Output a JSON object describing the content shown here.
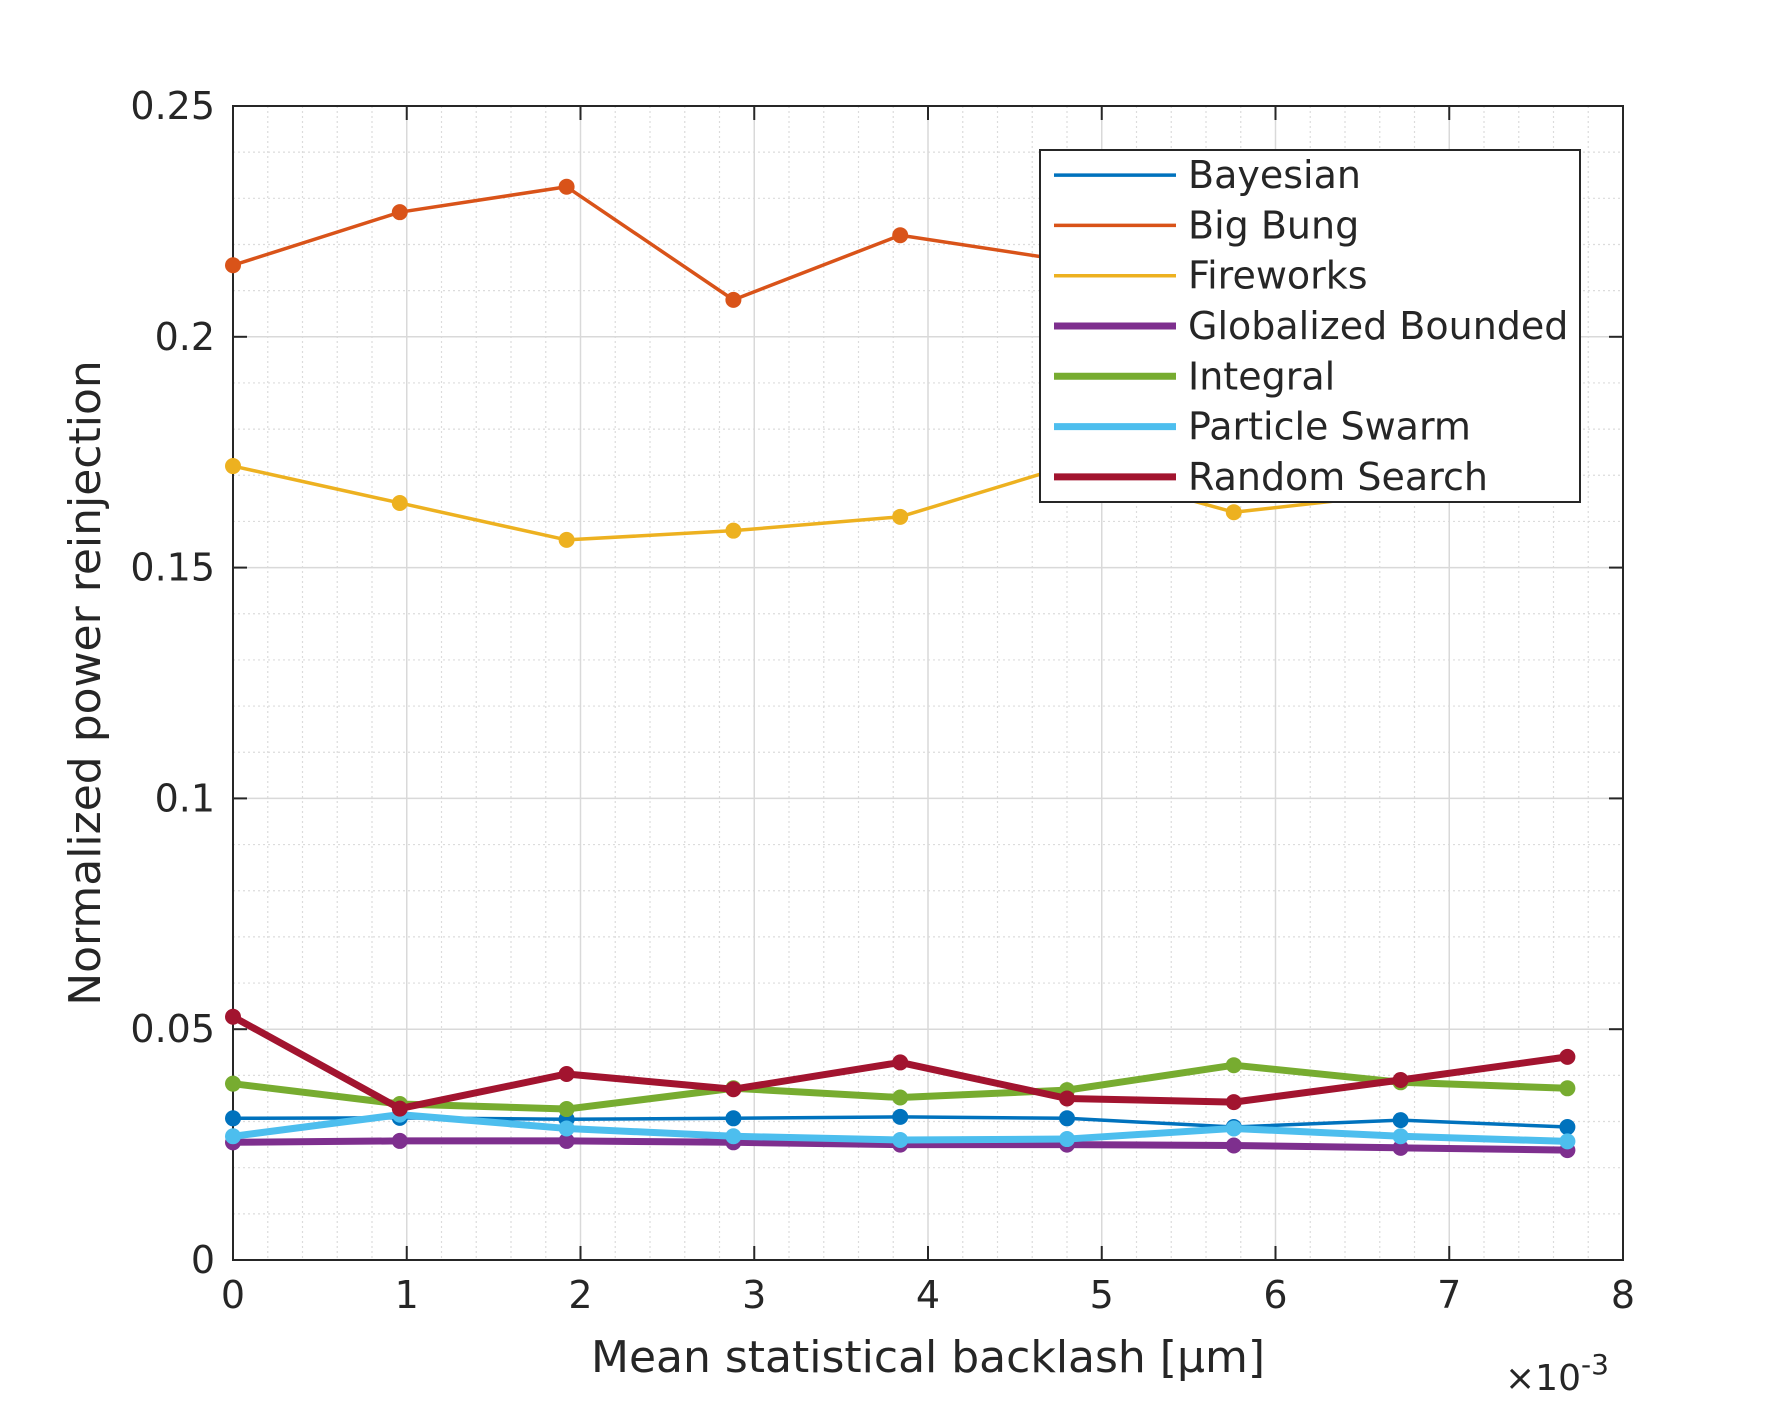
{
  "chart_data": {
    "type": "line",
    "title": "",
    "xlabel": "Mean statistical backlash [μm]",
    "ylabel": "Normalized power reinjection",
    "x_exponent_label": "×10",
    "x_exponent_power": "-3",
    "xlim": [
      0,
      0.008
    ],
    "ylim": [
      0,
      0.25
    ],
    "x_ticks": [
      0,
      0.001,
      0.002,
      0.003,
      0.004,
      0.005,
      0.006,
      0.007,
      0.008
    ],
    "x_tick_labels": [
      "0",
      "1",
      "2",
      "3",
      "4",
      "5",
      "6",
      "7",
      "8"
    ],
    "y_ticks": [
      0,
      0.05,
      0.1,
      0.15,
      0.2,
      0.25
    ],
    "y_tick_labels": [
      "0",
      "0.05",
      "0.1",
      "0.15",
      "0.2",
      "0.25"
    ],
    "grid": true,
    "minor_grid": true,
    "legend_position": "top-right",
    "x": [
      0,
      0.00096,
      0.00192,
      0.00288,
      0.00384,
      0.0048,
      0.00576,
      0.00672,
      0.00768
    ],
    "series": [
      {
        "name": "Bayesian",
        "color": "#0072BD",
        "line": "thin",
        "values": [
          0.0307,
          0.0308,
          0.0305,
          0.0307,
          0.031,
          0.0307,
          0.0288,
          0.0303,
          0.0288
        ]
      },
      {
        "name": "Big Bung",
        "color": "#D95319",
        "line": "thin",
        "values": [
          0.2155,
          0.227,
          0.2325,
          0.208,
          0.222,
          0.2165,
          0.2205,
          0.212,
          0.2165
        ]
      },
      {
        "name": "Fireworks",
        "color": "#EDB120",
        "line": "thin",
        "values": [
          0.172,
          0.164,
          0.156,
          0.158,
          0.161,
          0.172,
          0.162,
          0.166,
          0.17
        ]
      },
      {
        "name": "Globalized Bounded",
        "color": "#7E2F8E",
        "line": "thick",
        "values": [
          0.0255,
          0.0258,
          0.0258,
          0.0255,
          0.025,
          0.025,
          0.0248,
          0.0243,
          0.0238
        ]
      },
      {
        "name": "Integral",
        "color": "#77AC30",
        "line": "thick",
        "values": [
          0.0382,
          0.0338,
          0.0327,
          0.0372,
          0.0352,
          0.0368,
          0.0422,
          0.0385,
          0.0372
        ]
      },
      {
        "name": "Particle Swarm",
        "color": "#4DBEEE",
        "line": "thick",
        "values": [
          0.0268,
          0.0315,
          0.0285,
          0.0268,
          0.026,
          0.0262,
          0.0285,
          0.0268,
          0.0257
        ]
      },
      {
        "name": "Random Search",
        "color": "#A2142F",
        "line": "thick",
        "values": [
          0.0527,
          0.0328,
          0.0403,
          0.037,
          0.0428,
          0.035,
          0.0342,
          0.039,
          0.044
        ]
      }
    ]
  }
}
